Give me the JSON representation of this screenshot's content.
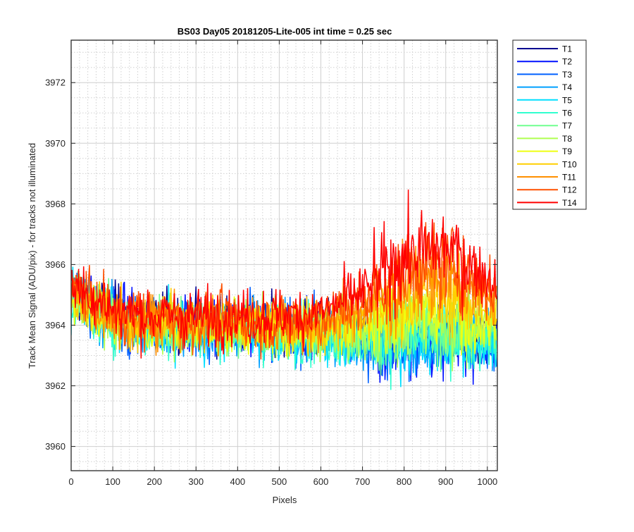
{
  "chart_data": {
    "type": "line",
    "title": "BS03 Day05 20181205-Lite-005 int time = 0.25 sec",
    "xlabel": "Pixels",
    "ylabel": "Track Mean Signal (ADU/pix) - for tracks not illuminated",
    "xlim": [
      0,
      1024
    ],
    "ylim": [
      3959.2,
      3973.4
    ],
    "xticks": [
      0,
      100,
      200,
      300,
      400,
      500,
      600,
      700,
      800,
      900,
      1000
    ],
    "xtick_labels": [
      "0",
      "100",
      "200",
      "300",
      "400",
      "500",
      "600",
      "700",
      "800",
      "900",
      "1000"
    ],
    "yticks": [
      3960,
      3962,
      3964,
      3966,
      3968,
      3970,
      3972
    ],
    "ytick_labels": [
      "3960",
      "3962",
      "3964",
      "3966",
      "3968",
      "3970",
      "3972"
    ],
    "grid": "major and minor",
    "legend_position": "outside-top-right",
    "series": [
      {
        "name": "T1",
        "color": "#00008f",
        "values": [
          3965.2,
          3964.4,
          3964.2,
          3964.0,
          3964.1,
          3963.9,
          3963.9,
          3963.6,
          3963.5,
          3963.6,
          3963.6
        ]
      },
      {
        "name": "T2",
        "color": "#0010ff",
        "values": [
          3965.0,
          3964.3,
          3964.1,
          3964.0,
          3964.0,
          3963.8,
          3963.8,
          3963.5,
          3963.4,
          3963.5,
          3963.5
        ]
      },
      {
        "name": "T3",
        "color": "#0060ff",
        "values": [
          3965.0,
          3964.2,
          3964.0,
          3963.9,
          3964.0,
          3963.8,
          3963.7,
          3963.5,
          3963.4,
          3963.5,
          3963.5
        ]
      },
      {
        "name": "T4",
        "color": "#00a0ff",
        "values": [
          3964.9,
          3964.1,
          3963.9,
          3963.8,
          3963.9,
          3963.7,
          3963.7,
          3963.4,
          3963.3,
          3963.4,
          3963.4
        ]
      },
      {
        "name": "T5",
        "color": "#00dfff",
        "values": [
          3964.9,
          3964.1,
          3963.9,
          3963.8,
          3963.9,
          3963.7,
          3963.7,
          3963.5,
          3963.4,
          3963.5,
          3963.4
        ]
      },
      {
        "name": "T6",
        "color": "#30ffcf",
        "values": [
          3964.9,
          3964.1,
          3963.9,
          3963.9,
          3963.9,
          3963.7,
          3963.7,
          3963.5,
          3963.6,
          3963.6,
          3963.5
        ]
      },
      {
        "name": "T7",
        "color": "#70ff90",
        "values": [
          3965.0,
          3964.2,
          3964.0,
          3963.9,
          3964.0,
          3963.8,
          3963.8,
          3963.7,
          3963.8,
          3963.9,
          3963.7
        ]
      },
      {
        "name": "T8",
        "color": "#afff50",
        "values": [
          3965.0,
          3964.2,
          3964.0,
          3963.9,
          3964.0,
          3963.8,
          3963.8,
          3963.8,
          3964.1,
          3964.2,
          3963.9
        ]
      },
      {
        "name": "T9",
        "color": "#efff10",
        "values": [
          3965.1,
          3964.2,
          3964.0,
          3964.0,
          3964.0,
          3963.9,
          3963.9,
          3964.0,
          3964.4,
          3964.6,
          3964.1
        ]
      },
      {
        "name": "T10",
        "color": "#ffcf00",
        "values": [
          3965.1,
          3964.3,
          3964.1,
          3964.0,
          3964.1,
          3964.0,
          3964.0,
          3964.2,
          3964.8,
          3965.0,
          3964.4
        ]
      },
      {
        "name": "T11",
        "color": "#ff9000",
        "values": [
          3965.2,
          3964.3,
          3964.1,
          3964.1,
          3964.1,
          3964.0,
          3964.1,
          3964.5,
          3965.3,
          3965.6,
          3964.7
        ]
      },
      {
        "name": "T12",
        "color": "#ff5000",
        "values": [
          3965.3,
          3964.4,
          3964.2,
          3964.2,
          3964.2,
          3964.1,
          3964.2,
          3964.8,
          3965.8,
          3966.1,
          3965.0
        ]
      },
      {
        "name": "T14",
        "color": "#ff0000",
        "values": [
          3965.4,
          3964.5,
          3964.3,
          3964.3,
          3964.3,
          3964.3,
          3964.4,
          3965.1,
          3966.3,
          3966.6,
          3965.4
        ]
      }
    ],
    "x": [
      0,
      100,
      200,
      300,
      400,
      500,
      600,
      700,
      800,
      900,
      1020
    ]
  }
}
